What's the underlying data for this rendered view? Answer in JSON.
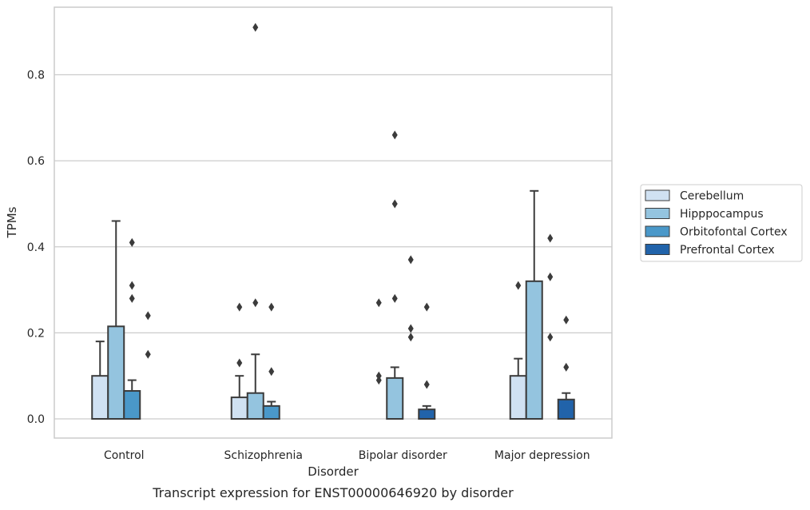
{
  "chart_data": {
    "type": "bar",
    "caption": "Transcript expression for ENST00000646920 by disorder",
    "xlabel": "Disorder",
    "ylabel": "TPMs",
    "ylim": [
      -0.045,
      0.955
    ],
    "yticks": [
      "0.0",
      "0.2",
      "0.4",
      "0.6",
      "0.8"
    ],
    "ytick_values": [
      0.0,
      0.2,
      0.4,
      0.6,
      0.8
    ],
    "grid": "horizontal",
    "legend_position": "right",
    "categories": [
      "Control",
      "Schizophrenia",
      "Bipolar disorder",
      "Major depression"
    ],
    "series": [
      {
        "name": "Cerebellum",
        "color": "#d0e1f2",
        "values": [
          0.1,
          0.05,
          0.0,
          0.1
        ],
        "error_upper": [
          0.18,
          0.1,
          null,
          0.14
        ],
        "outliers": [
          [],
          [
            0.26,
            0.13
          ],
          [
            0.27,
            0.1,
            0.09
          ],
          [
            0.31
          ]
        ]
      },
      {
        "name": "Hipppocampus",
        "color": "#94c4df",
        "values": [
          0.215,
          0.06,
          0.095,
          0.32
        ],
        "error_upper": [
          0.46,
          0.15,
          0.12,
          0.53
        ],
        "outliers": [
          [],
          [
            0.91,
            0.27
          ],
          [
            0.66,
            0.5,
            0.28
          ],
          []
        ]
      },
      {
        "name": "Orbitofontal Cortex",
        "color": "#4a98c9",
        "values": [
          0.065,
          0.03,
          0.0,
          0.0
        ],
        "error_upper": [
          0.09,
          0.04,
          null,
          null
        ],
        "outliers": [
          [
            0.41,
            0.31,
            0.28
          ],
          [
            0.26,
            0.11
          ],
          [
            0.37,
            0.21,
            0.19
          ],
          [
            0.42,
            0.33,
            0.19
          ]
        ]
      },
      {
        "name": "Prefrontal Cortex",
        "color": "#2163aa",
        "values": [
          0.0,
          0.0,
          0.022,
          0.045
        ],
        "error_upper": [
          null,
          null,
          0.03,
          0.06
        ],
        "outliers": [
          [
            0.24,
            0.15
          ],
          [],
          [
            0.26,
            0.08
          ],
          [
            0.23,
            0.12
          ]
        ]
      }
    ]
  }
}
